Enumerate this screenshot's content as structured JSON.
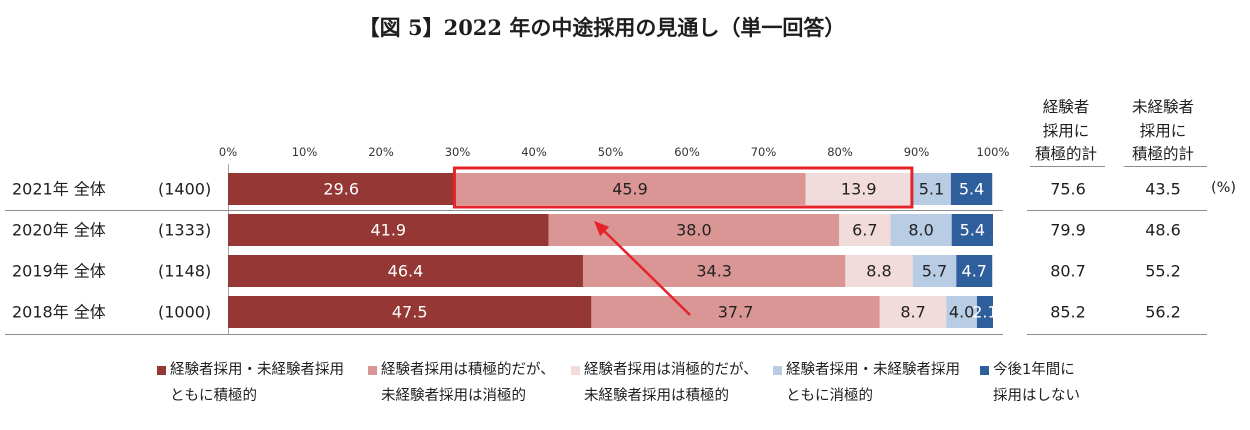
{
  "title": "【図 5】2022 年の中途採用の見通し（単一回答）",
  "colors": {
    "highlight": "#E4232A",
    "text": "#1e1e1e"
  },
  "chart_data": {
    "type": "bar",
    "orientation": "horizontal",
    "stacked": true,
    "legend_position": "bottom",
    "grid": false,
    "xlim": [
      0,
      100
    ],
    "x_ticks": [
      "0%",
      "10%",
      "20%",
      "30%",
      "40%",
      "50%",
      "60%",
      "70%",
      "80%",
      "90%",
      "100%"
    ],
    "categories": [
      "2021年 全体",
      "2020年 全体",
      "2019年 全体",
      "2018年 全体"
    ],
    "sample_sizes": [
      "(1400)",
      "(1333)",
      "(1148)",
      "(1000)"
    ],
    "series": [
      {
        "name": "経験者採用・未経験者採用\nともに積極的",
        "color": "#953735",
        "label_color": "#ffffff",
        "values": [
          29.6,
          41.9,
          46.4,
          47.5
        ]
      },
      {
        "name": "経験者採用は積極的だが、\n未経験者採用は消極的",
        "color": "#DA9694",
        "label_color": "#222222",
        "values": [
          45.9,
          38.0,
          34.3,
          37.7
        ]
      },
      {
        "name": "経験者採用は消極的だが、\n未経験者採用は積極的",
        "color": "#F2DCDB",
        "label_color": "#222222",
        "values": [
          13.9,
          6.7,
          8.8,
          8.7
        ]
      },
      {
        "name": "経験者採用・未経験者採用\nともに消極的",
        "color": "#B8CCE4",
        "label_color": "#222222",
        "values": [
          5.1,
          8.0,
          5.7,
          4.0
        ]
      },
      {
        "name": "今後1年間に\n採用はしない",
        "color": "#2F5E9C",
        "label_color": "#ffffff",
        "values": [
          5.4,
          5.4,
          4.7,
          2.1
        ]
      }
    ],
    "totals": {
      "columns": [
        "経験者\n採用に\n積極的計",
        "未経験者\n採用に\n積極的計"
      ],
      "experienced": [
        75.6,
        79.9,
        80.7,
        85.2
      ],
      "inexperienced": [
        43.5,
        48.6,
        55.2,
        56.2
      ],
      "unit": "(%)"
    }
  }
}
